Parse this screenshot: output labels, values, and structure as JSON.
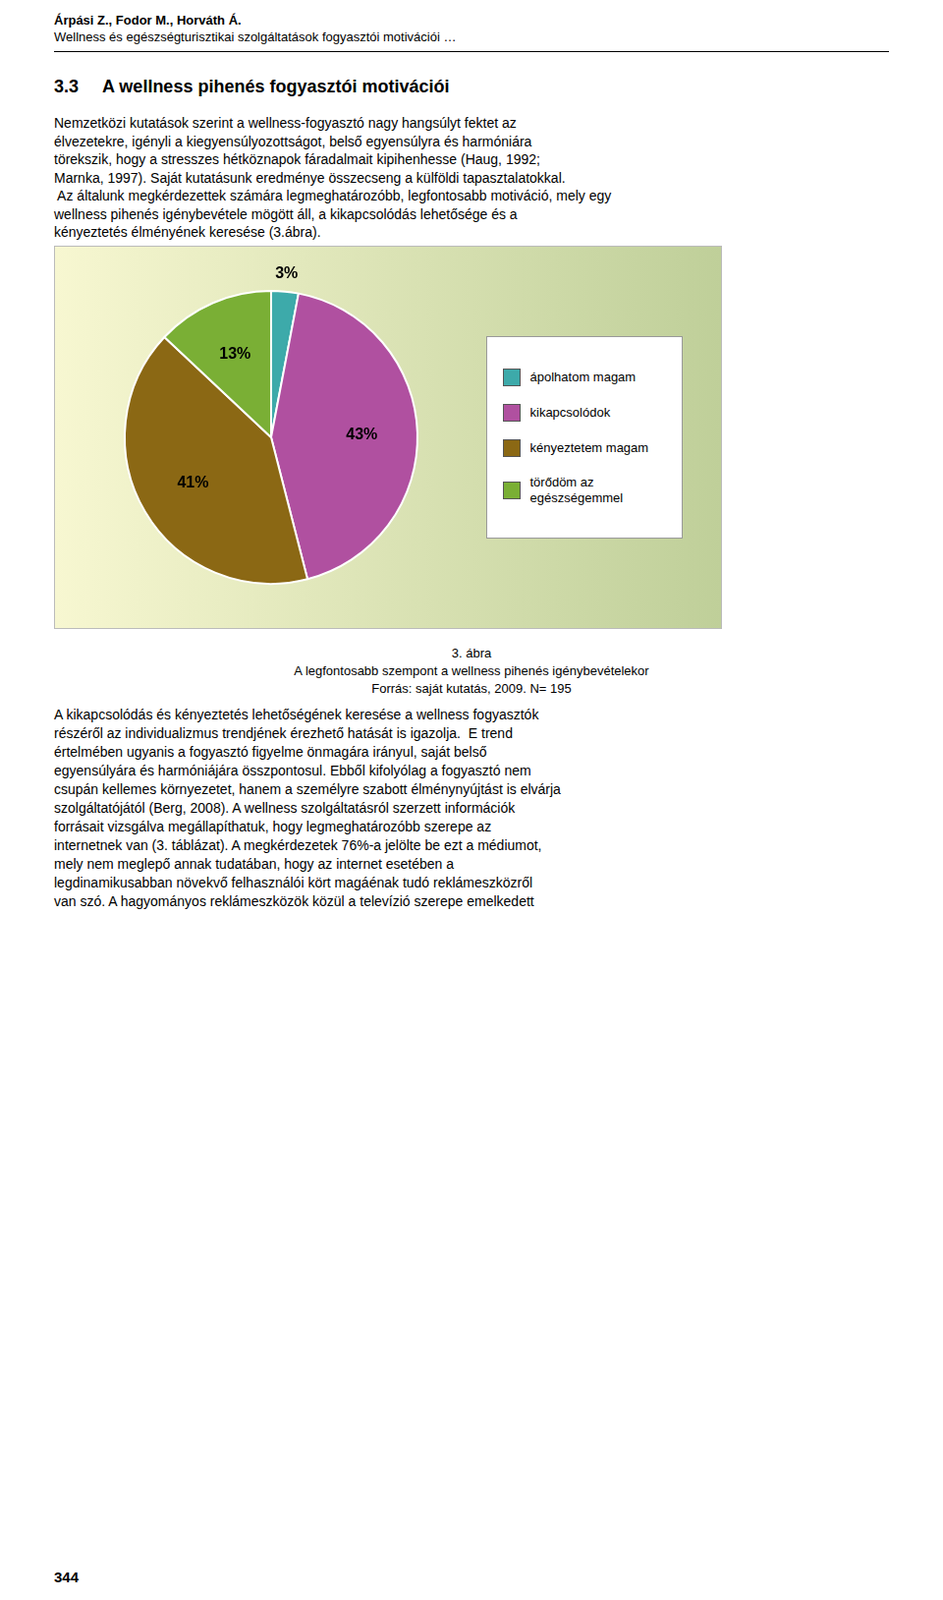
{
  "header": [
    "Árpási Z., Fodor M., Horváth Á.",
    "Wellness és egészségturisztikai szolgáltatások fogyasztói motivációi …"
  ],
  "section": [
    "3.3",
    "A wellness pihenés fogyasztói motivációi"
  ],
  "body_before": [
    "Nemzetközi kutatások szerint a wellness-fogyasztó nagy hangsúlyt fektet az",
    "élvezetekre, igényli a kiegyensúlyozottságot, belső egyensúlyra és harmóniára",
    "törekszik, hogy a stresszes hétköznapok fáradalmait kipihenhesse (Haug, 1992;",
    "Marnka, 1997). Saját kutatásunk eredménye összecseng a külföldi tapasztalatokkal.",
    " Az általunk megkérdezettek számára legmeghatározóbb, legfontosabb motiváció, mely egy",
    "wellness pihenés igénybevétele mögött áll, a kikapcsolódás lehetősége és a",
    "kényeztetés élményének keresése (3.ábra)."
  ],
  "chart_data": {
    "type": "pie",
    "title": "3. ábra",
    "subtitle": "A legfontosabb szempont a wellness pihenés igénybevételekor",
    "annotations": [
      "Forrás: saját kutatás, 2009. N= 195"
    ],
    "categories": [
      "ápolhatom magam",
      "kikapcsolódok",
      "kényeztetem magam",
      "törődöm az\negészségemmel"
    ],
    "values": [
      3,
      43,
      41,
      13
    ],
    "value_labels": [
      "3%",
      "43%",
      "41%",
      "13%"
    ],
    "colors": [
      "#3DAAAA",
      "#B050A0",
      "#8B6814",
      "#7AAF35"
    ],
    "data_labels": true,
    "legend": "right"
  },
  "body_after": [
    "A kikapcsolódás és kényeztetés lehetőségének keresése a wellness fogyasztók",
    "részéről az individualizmus trendjének érezhető hatását is igazolja.  E trend",
    "értelmében ugyanis a fogyasztó figyelme önmagára irányul, saját belső",
    "egyensúlyára és harmóniájára összpontosul. Ebből kifolyólag a fogyasztó nem",
    "csupán kellemes környezetet, hanem a személyre szabott élménynyújtást is elvárja",
    "szolgáltatójától (Berg, 2008). A wellness szolgáltatásról szerzett információk",
    "forrásait vizsgálva megállapíthatuk, hogy legmeghatározóbb szerepe az",
    "internetnek van (3. táblázat). A megkérdezetek 76%-a jelölte be ezt a médiumot,",
    "mely nem meglepő annak tudatában, hogy az internet esetében a",
    "legdinamikusabban növekvő felhasználói kört magáénak tudó reklámeszközről",
    "van szó. A hagyományos reklámeszközök közül a televízió szerepe emelkedett"
  ],
  "page_number": "344"
}
